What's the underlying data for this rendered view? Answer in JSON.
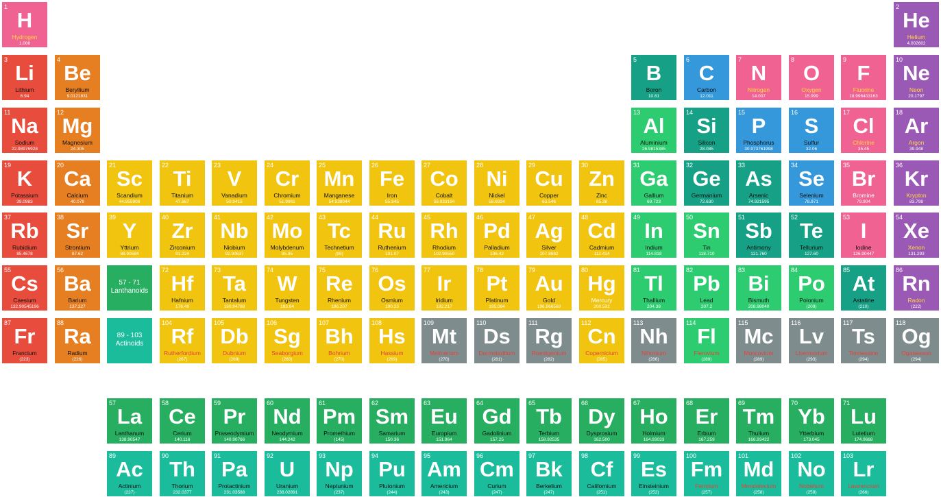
{
  "colors": {
    "alkali": "#e74c3c",
    "alkaline": "#e67e22",
    "transition": "#f1c40f",
    "post": "#2ecc71",
    "metalloid": "#16a085",
    "nonmetal": "#3498db",
    "reactive": "#f06292",
    "noble": "#9b59b6",
    "unknown": "#7f8c8d",
    "lanthanide": "#27ae60",
    "actinide": "#1abc9c"
  },
  "placeholders": [
    {
      "label_range": "57 - 71",
      "label_name": "Lanthanoids",
      "color": "#27ae60"
    },
    {
      "label_range": "89 - 103",
      "label_name": "Actinoids",
      "color": "#1abc9c"
    }
  ],
  "elements": [
    [
      "1",
      "H",
      "Hydrogen",
      "1.008",
      "reactive",
      "gas",
      1,
      1
    ],
    [
      "2",
      "He",
      "Helium",
      "4.002602",
      "noble",
      "gas",
      18,
      1
    ],
    [
      "3",
      "Li",
      "Lithium",
      "6.94",
      "alkali",
      "solid",
      1,
      2
    ],
    [
      "4",
      "Be",
      "Beryllium",
      "9.0121831",
      "alkaline",
      "solid",
      2,
      2
    ],
    [
      "5",
      "B",
      "Boron",
      "10.81",
      "metalloid",
      "solid",
      13,
      2
    ],
    [
      "6",
      "C",
      "Carbon",
      "12.011",
      "nonmetal",
      "solid",
      14,
      2
    ],
    [
      "7",
      "N",
      "Nitrogen",
      "14.007",
      "reactive",
      "gas",
      15,
      2
    ],
    [
      "8",
      "O",
      "Oxygen",
      "15.999",
      "reactive",
      "gas",
      16,
      2
    ],
    [
      "9",
      "F",
      "Fluorine",
      "18.998403163",
      "reactive",
      "gas",
      17,
      2
    ],
    [
      "10",
      "Ne",
      "Neon",
      "20.1797",
      "noble",
      "gas",
      18,
      2
    ],
    [
      "11",
      "Na",
      "Sodium",
      "22.98976928",
      "alkali",
      "solid",
      1,
      3
    ],
    [
      "12",
      "Mg",
      "Magnesium",
      "24.305",
      "alkaline",
      "solid",
      2,
      3
    ],
    [
      "13",
      "Al",
      "Aluminium",
      "26.9815385",
      "post",
      "solid",
      13,
      3
    ],
    [
      "14",
      "Si",
      "Silicon",
      "28.085",
      "metalloid",
      "solid",
      14,
      3
    ],
    [
      "15",
      "P",
      "Phosphorus",
      "30.973761998",
      "nonmetal",
      "solid",
      15,
      3
    ],
    [
      "16",
      "S",
      "Sulfur",
      "32.06",
      "nonmetal",
      "solid",
      16,
      3
    ],
    [
      "17",
      "Cl",
      "Chlorine",
      "35.45",
      "reactive",
      "gas",
      17,
      3
    ],
    [
      "18",
      "Ar",
      "Argon",
      "39.948",
      "noble",
      "gas",
      18,
      3
    ],
    [
      "19",
      "K",
      "Potassium",
      "39.0983",
      "alkali",
      "solid",
      1,
      4
    ],
    [
      "20",
      "Ca",
      "Calcium",
      "40.078",
      "alkaline",
      "solid",
      2,
      4
    ],
    [
      "21",
      "Sc",
      "Scandium",
      "44.955908",
      "transition",
      "solid",
      3,
      4
    ],
    [
      "22",
      "Ti",
      "Titanium",
      "47.867",
      "transition",
      "solid",
      4,
      4
    ],
    [
      "23",
      "V",
      "Vanadium",
      "50.9415",
      "transition",
      "solid",
      5,
      4
    ],
    [
      "24",
      "Cr",
      "Chromium",
      "51.9961",
      "transition",
      "solid",
      6,
      4
    ],
    [
      "25",
      "Mn",
      "Manganese",
      "54.938044",
      "transition",
      "solid",
      7,
      4
    ],
    [
      "26",
      "Fe",
      "Iron",
      "55.845",
      "transition",
      "solid",
      8,
      4
    ],
    [
      "27",
      "Co",
      "Cobalt",
      "58.933194",
      "transition",
      "solid",
      9,
      4
    ],
    [
      "28",
      "Ni",
      "Nickel",
      "58.6934",
      "transition",
      "solid",
      10,
      4
    ],
    [
      "29",
      "Cu",
      "Copper",
      "63.546",
      "transition",
      "solid",
      11,
      4
    ],
    [
      "30",
      "Zn",
      "Zinc",
      "65.38",
      "transition",
      "solid",
      12,
      4
    ],
    [
      "31",
      "Ga",
      "Gallium",
      "69.723",
      "post",
      "solid",
      13,
      4
    ],
    [
      "32",
      "Ge",
      "Germanium",
      "72.630",
      "metalloid",
      "solid",
      14,
      4
    ],
    [
      "33",
      "As",
      "Arsenic",
      "74.921595",
      "metalloid",
      "solid",
      15,
      4
    ],
    [
      "34",
      "Se",
      "Selenium",
      "78.971",
      "nonmetal",
      "solid",
      16,
      4
    ],
    [
      "35",
      "Br",
      "Bromine",
      "79.904",
      "reactive",
      "liquid",
      17,
      4
    ],
    [
      "36",
      "Kr",
      "Krypton",
      "83.798",
      "noble",
      "gas",
      18,
      4
    ],
    [
      "37",
      "Rb",
      "Rubidium",
      "85.4678",
      "alkali",
      "solid",
      1,
      5
    ],
    [
      "38",
      "Sr",
      "Strontium",
      "87.62",
      "alkaline",
      "solid",
      2,
      5
    ],
    [
      "39",
      "Y",
      "Yttrium",
      "88.90584",
      "transition",
      "solid",
      3,
      5
    ],
    [
      "40",
      "Zr",
      "Zirconium",
      "91.224",
      "transition",
      "solid",
      4,
      5
    ],
    [
      "41",
      "Nb",
      "Niobium",
      "92.90637",
      "transition",
      "solid",
      5,
      5
    ],
    [
      "42",
      "Mo",
      "Molybdenum",
      "95.95",
      "transition",
      "solid",
      6,
      5
    ],
    [
      "43",
      "Tc",
      "Technetium",
      "(98)",
      "transition",
      "solid",
      7,
      5
    ],
    [
      "44",
      "Ru",
      "Ruthenium",
      "101.07",
      "transition",
      "solid",
      8,
      5
    ],
    [
      "45",
      "Rh",
      "Rhodium",
      "102.90550",
      "transition",
      "solid",
      9,
      5
    ],
    [
      "46",
      "Pd",
      "Palladium",
      "106.42",
      "transition",
      "solid",
      10,
      5
    ],
    [
      "47",
      "Ag",
      "Silver",
      "107.8682",
      "transition",
      "solid",
      11,
      5
    ],
    [
      "48",
      "Cd",
      "Cadmium",
      "112.414",
      "transition",
      "solid",
      12,
      5
    ],
    [
      "49",
      "In",
      "Indium",
      "114.818",
      "post",
      "solid",
      13,
      5
    ],
    [
      "50",
      "Sn",
      "Tin",
      "118.710",
      "post",
      "solid",
      14,
      5
    ],
    [
      "51",
      "Sb",
      "Antimony",
      "121.760",
      "metalloid",
      "solid",
      15,
      5
    ],
    [
      "52",
      "Te",
      "Tellurium",
      "127.60",
      "metalloid",
      "solid",
      16,
      5
    ],
    [
      "53",
      "I",
      "Iodine",
      "126.90447",
      "reactive",
      "solid",
      17,
      5
    ],
    [
      "54",
      "Xe",
      "Xenon",
      "131.293",
      "noble",
      "gas",
      18,
      5
    ],
    [
      "55",
      "Cs",
      "Caesium",
      "132.90545196",
      "alkali",
      "solid",
      1,
      6
    ],
    [
      "56",
      "Ba",
      "Barium",
      "137.327",
      "alkaline",
      "solid",
      2,
      6
    ],
    [
      "72",
      "Hf",
      "Hafnium",
      "178.49",
      "transition",
      "solid",
      4,
      6
    ],
    [
      "73",
      "Ta",
      "Tantalum",
      "180.94788",
      "transition",
      "solid",
      5,
      6
    ],
    [
      "74",
      "W",
      "Tungsten",
      "183.84",
      "transition",
      "solid",
      6,
      6
    ],
    [
      "75",
      "Re",
      "Rhenium",
      "186.207",
      "transition",
      "solid",
      7,
      6
    ],
    [
      "76",
      "Os",
      "Osmium",
      "190.23",
      "transition",
      "solid",
      8,
      6
    ],
    [
      "77",
      "Ir",
      "Iridium",
      "192.217",
      "transition",
      "solid",
      9,
      6
    ],
    [
      "78",
      "Pt",
      "Platinum",
      "195.084",
      "transition",
      "solid",
      10,
      6
    ],
    [
      "79",
      "Au",
      "Gold",
      "196.966569",
      "transition",
      "solid",
      11,
      6
    ],
    [
      "80",
      "Hg",
      "Mercury",
      "200.592",
      "transition",
      "liquid",
      12,
      6
    ],
    [
      "81",
      "Tl",
      "Thallium",
      "204.38",
      "post",
      "solid",
      13,
      6
    ],
    [
      "82",
      "Pb",
      "Lead",
      "207.2",
      "post",
      "solid",
      14,
      6
    ],
    [
      "83",
      "Bi",
      "Bismuth",
      "208.98040",
      "post",
      "solid",
      15,
      6
    ],
    [
      "84",
      "Po",
      "Polonium",
      "(209)",
      "post",
      "solid",
      16,
      6
    ],
    [
      "85",
      "At",
      "Astatine",
      "(210)",
      "metalloid",
      "solid",
      17,
      6
    ],
    [
      "86",
      "Rn",
      "Radon",
      "(222)",
      "noble",
      "gas",
      18,
      6
    ],
    [
      "87",
      "Fr",
      "Francium",
      "(223)",
      "alkali",
      "solid",
      1,
      7
    ],
    [
      "88",
      "Ra",
      "Radium",
      "(226)",
      "alkaline",
      "solid",
      2,
      7
    ],
    [
      "104",
      "Rf",
      "Rutherfordium",
      "(267)",
      "transition",
      "unknown",
      4,
      7
    ],
    [
      "105",
      "Db",
      "Dubnium",
      "(268)",
      "transition",
      "unknown",
      5,
      7
    ],
    [
      "106",
      "Sg",
      "Seaborgium",
      "(269)",
      "transition",
      "unknown",
      6,
      7
    ],
    [
      "107",
      "Bh",
      "Bohrium",
      "(270)",
      "transition",
      "unknown",
      7,
      7
    ],
    [
      "108",
      "Hs",
      "Hassium",
      "(269)",
      "transition",
      "unknown",
      8,
      7
    ],
    [
      "109",
      "Mt",
      "Meitnerium",
      "(278)",
      "unknown",
      "unknown",
      9,
      7
    ],
    [
      "110",
      "Ds",
      "Darmstadtium",
      "(281)",
      "unknown",
      "unknown",
      10,
      7
    ],
    [
      "111",
      "Rg",
      "Roentgenium",
      "(282)",
      "unknown",
      "unknown",
      11,
      7
    ],
    [
      "112",
      "Cn",
      "Copernicium",
      "(285)",
      "transition",
      "unknown",
      12,
      7
    ],
    [
      "113",
      "Nh",
      "Nihonium",
      "(286)",
      "unknown",
      "unknown",
      13,
      7
    ],
    [
      "114",
      "Fl",
      "Flerovium",
      "(289)",
      "post",
      "unknown",
      14,
      7
    ],
    [
      "115",
      "Mc",
      "Moscovium",
      "(289)",
      "unknown",
      "unknown",
      15,
      7
    ],
    [
      "116",
      "Lv",
      "Livermorium",
      "(293)",
      "unknown",
      "unknown",
      16,
      7
    ],
    [
      "117",
      "Ts",
      "Tennessine",
      "(294)",
      "unknown",
      "unknown",
      17,
      7
    ],
    [
      "118",
      "Og",
      "Oganesson",
      "(294)",
      "unknown",
      "unknown",
      18,
      7
    ],
    [
      "57",
      "La",
      "Lanthanum",
      "138.90547",
      "lanthanide",
      "solid",
      3,
      9
    ],
    [
      "58",
      "Ce",
      "Cerium",
      "140.116",
      "lanthanide",
      "solid",
      4,
      9
    ],
    [
      "59",
      "Pr",
      "Praseodymium",
      "140.90766",
      "lanthanide",
      "solid",
      5,
      9
    ],
    [
      "60",
      "Nd",
      "Neodymium",
      "144.242",
      "lanthanide",
      "solid",
      6,
      9
    ],
    [
      "61",
      "Pm",
      "Promethium",
      "(145)",
      "lanthanide",
      "solid",
      7,
      9
    ],
    [
      "62",
      "Sm",
      "Samarium",
      "150.36",
      "lanthanide",
      "solid",
      8,
      9
    ],
    [
      "63",
      "Eu",
      "Europium",
      "151.964",
      "lanthanide",
      "solid",
      9,
      9
    ],
    [
      "64",
      "Gd",
      "Gadolinium",
      "157.25",
      "lanthanide",
      "solid",
      10,
      9
    ],
    [
      "65",
      "Tb",
      "Terbium",
      "158.92535",
      "lanthanide",
      "solid",
      11,
      9
    ],
    [
      "66",
      "Dy",
      "Dysprosium",
      "162.500",
      "lanthanide",
      "solid",
      12,
      9
    ],
    [
      "67",
      "Ho",
      "Holmium",
      "164.93033",
      "lanthanide",
      "solid",
      13,
      9
    ],
    [
      "68",
      "Er",
      "Erbium",
      "167.259",
      "lanthanide",
      "solid",
      14,
      9
    ],
    [
      "69",
      "Tm",
      "Thulium",
      "168.93422",
      "lanthanide",
      "solid",
      15,
      9
    ],
    [
      "70",
      "Yb",
      "Ytterbium",
      "173.045",
      "lanthanide",
      "solid",
      16,
      9
    ],
    [
      "71",
      "Lu",
      "Lutetium",
      "174.9668",
      "lanthanide",
      "solid",
      17,
      9
    ],
    [
      "89",
      "Ac",
      "Actinium",
      "(227)",
      "actinide",
      "solid",
      3,
      10
    ],
    [
      "90",
      "Th",
      "Thorium",
      "232.0377",
      "actinide",
      "solid",
      4,
      10
    ],
    [
      "91",
      "Pa",
      "Protactinium",
      "231.03588",
      "actinide",
      "solid",
      5,
      10
    ],
    [
      "92",
      "U",
      "Uranium",
      "238.02891",
      "actinide",
      "solid",
      6,
      10
    ],
    [
      "93",
      "Np",
      "Neptunium",
      "(237)",
      "actinide",
      "solid",
      7,
      10
    ],
    [
      "94",
      "Pu",
      "Plutonium",
      "(244)",
      "actinide",
      "solid",
      8,
      10
    ],
    [
      "95",
      "Am",
      "Americium",
      "(243)",
      "actinide",
      "solid",
      9,
      10
    ],
    [
      "96",
      "Cm",
      "Curium",
      "(247)",
      "actinide",
      "solid",
      10,
      10
    ],
    [
      "97",
      "Bk",
      "Berkelium",
      "(247)",
      "actinide",
      "solid",
      11,
      10
    ],
    [
      "98",
      "Cf",
      "Californium",
      "(251)",
      "actinide",
      "solid",
      12,
      10
    ],
    [
      "99",
      "Es",
      "Einsteinium",
      "(252)",
      "actinide",
      "solid",
      13,
      10
    ],
    [
      "100",
      "Fm",
      "Fermium",
      "(257)",
      "actinide",
      "unknown",
      14,
      10
    ],
    [
      "101",
      "Md",
      "Mendelevium",
      "(258)",
      "actinide",
      "unknown",
      15,
      10
    ],
    [
      "102",
      "No",
      "Nobelium",
      "(259)",
      "actinide",
      "unknown",
      16,
      10
    ],
    [
      "103",
      "Lr",
      "Lawrencium",
      "(266)",
      "actinide",
      "unknown",
      17,
      10
    ]
  ]
}
